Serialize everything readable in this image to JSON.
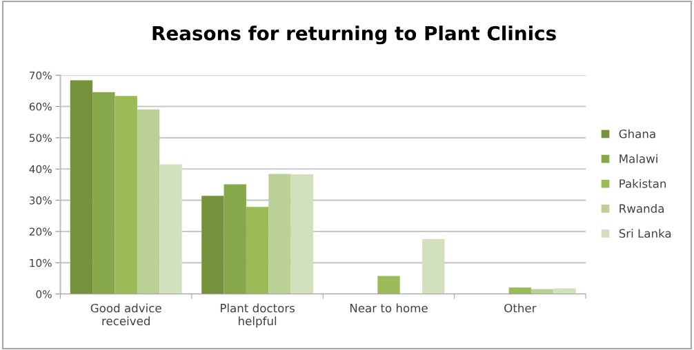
{
  "chart_data": {
    "type": "bar",
    "title": "Reasons for returning to Plant Clinics",
    "categories": [
      "Good advice\nreceived",
      "Plant doctors\nhelpful",
      "Near to home",
      "Other"
    ],
    "series": [
      {
        "name": "Ghana",
        "color": "#76923c",
        "values": [
          68.4,
          31.4,
          0,
          0
        ]
      },
      {
        "name": "Malawi",
        "color": "#86a84a",
        "values": [
          64.6,
          35.1,
          0,
          0
        ]
      },
      {
        "name": "Pakistan",
        "color": "#9bbb59",
        "values": [
          63.4,
          27.9,
          5.8,
          2.1
        ]
      },
      {
        "name": "Rwanda",
        "color": "#bad097",
        "values": [
          59.1,
          38.4,
          0,
          1.6
        ]
      },
      {
        "name": "Sri Lanka",
        "color": "#d3e0bd",
        "values": [
          41.5,
          38.3,
          17.6,
          1.8
        ]
      }
    ],
    "ylim": [
      0,
      70
    ],
    "yticks": [
      {
        "value": 0,
        "label": "0%"
      },
      {
        "value": 10,
        "label": "10%"
      },
      {
        "value": 20,
        "label": "20%"
      },
      {
        "value": 30,
        "label": "30%"
      },
      {
        "value": 40,
        "label": "40%"
      },
      {
        "value": 50,
        "label": "50%"
      },
      {
        "value": 60,
        "label": "60%"
      },
      {
        "value": 70,
        "label": "70%"
      }
    ],
    "grid": "y",
    "legend": "right"
  }
}
